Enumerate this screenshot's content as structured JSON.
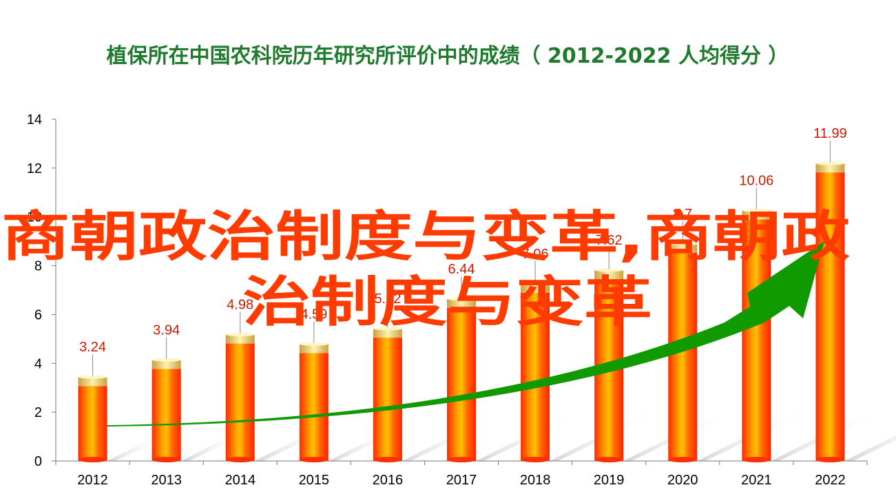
{
  "chart_data": {
    "type": "bar",
    "title": "植保所在中国农科院历年研究所评价中的成绩（ 2012-2022  人均得分 ）",
    "xlabel": "",
    "ylabel": "",
    "categories": [
      "2012",
      "2013",
      "2014",
      "2015",
      "2016",
      "2017",
      "2018",
      "2019",
      "2020",
      "2021",
      "2022"
    ],
    "values": [
      3.24,
      3.94,
      4.98,
      4.59,
      5.22,
      6.44,
      7.06,
      7.62,
      8.7,
      10.06,
      11.99
    ],
    "data_labels": [
      "3.24",
      "3.94",
      "4.98",
      "4.59",
      "5.22",
      "6.44",
      "7.06",
      "7.62",
      "8.7",
      "10.06",
      "11.99"
    ],
    "ylim": [
      0,
      14
    ],
    "yticks": [
      "0",
      "2",
      "4",
      "6",
      "8",
      "10",
      "12",
      "14"
    ],
    "grid": false,
    "legend": "none",
    "trend_arrow": true
  },
  "watermark": {
    "line1": "商朝政治制度与变革,商朝政",
    "line2": "治制度与变革"
  },
  "colors": {
    "title": "#1f7a2e",
    "bar": "#ff3a00",
    "bar_highlight": "#ffb000",
    "cap": "#e8c060",
    "label": "#cc1a00",
    "arrow": "#119900",
    "watermark": "#ff3b00"
  }
}
